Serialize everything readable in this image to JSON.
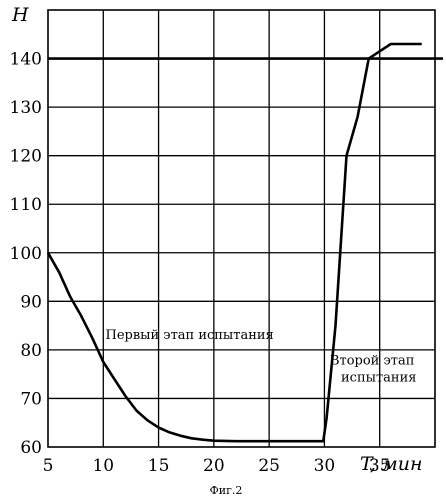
{
  "chart_data": {
    "type": "line",
    "ylabel": "H",
    "xlabel": "T, мин",
    "caption": "Фиг.2",
    "xlim": [
      5,
      40
    ],
    "ylim": [
      60,
      150
    ],
    "x_ticks": [
      "5",
      "10",
      "15",
      "20",
      "25",
      "30",
      "35"
    ],
    "y_ticks": [
      "60",
      "70",
      "80",
      "90",
      "100",
      "110",
      "120",
      "130",
      "140"
    ],
    "grid": true,
    "reference_line": {
      "y": 140
    },
    "series": [
      {
        "x": [
          5,
          6,
          7,
          8,
          9,
          10,
          11,
          12,
          13,
          14,
          15,
          16,
          17,
          18,
          19,
          20,
          22,
          25,
          28,
          29.9,
          30.2,
          31,
          32,
          33,
          34,
          35,
          36,
          37,
          38.8
        ],
        "y": [
          100,
          96,
          91,
          87,
          82.5,
          77.5,
          74,
          70.5,
          67.5,
          65.5,
          64,
          63,
          62.3,
          61.8,
          61.5,
          61.3,
          61.2,
          61.2,
          61.2,
          61.2,
          66,
          85,
          120,
          128,
          140,
          141.5,
          143,
          143,
          143
        ]
      }
    ],
    "annotations": [
      {
        "text": "Первый этап испытания",
        "x": 10.2,
        "y": 82.2
      },
      {
        "text": "Второй этап",
        "x": 30.5,
        "y": 77
      },
      {
        "text": "испытания",
        "x": 31.5,
        "y": 73.5
      }
    ]
  }
}
